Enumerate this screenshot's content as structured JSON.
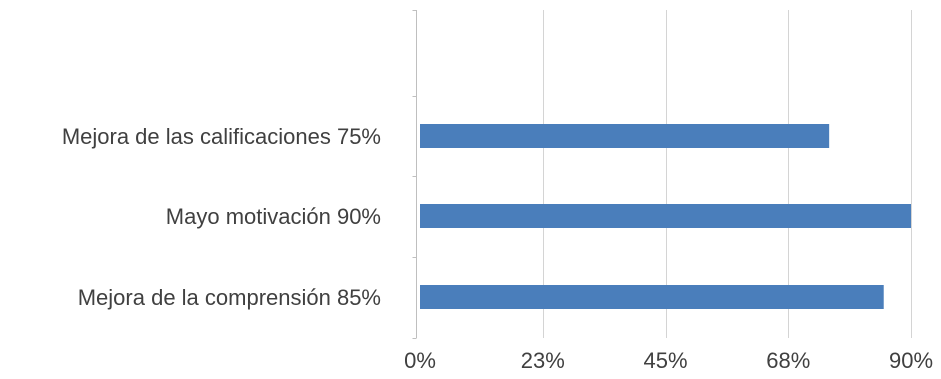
{
  "chart_data": {
    "type": "bar",
    "orientation": "horizontal",
    "categories": [
      "Mejora de las calificaciones 75%",
      "Mayo motivación   90%",
      "Mejora de la comprensión 85%"
    ],
    "values": [
      75,
      90,
      85
    ],
    "value_unit": "%",
    "xlim": [
      0,
      90
    ],
    "x_ticks": [
      "0%",
      "23%",
      "45%",
      "68%",
      "90%"
    ],
    "x_tick_values": [
      0,
      22.5,
      45,
      67.5,
      90
    ],
    "grid": true,
    "legend": "none",
    "bar_color": "#4a7ebb"
  }
}
